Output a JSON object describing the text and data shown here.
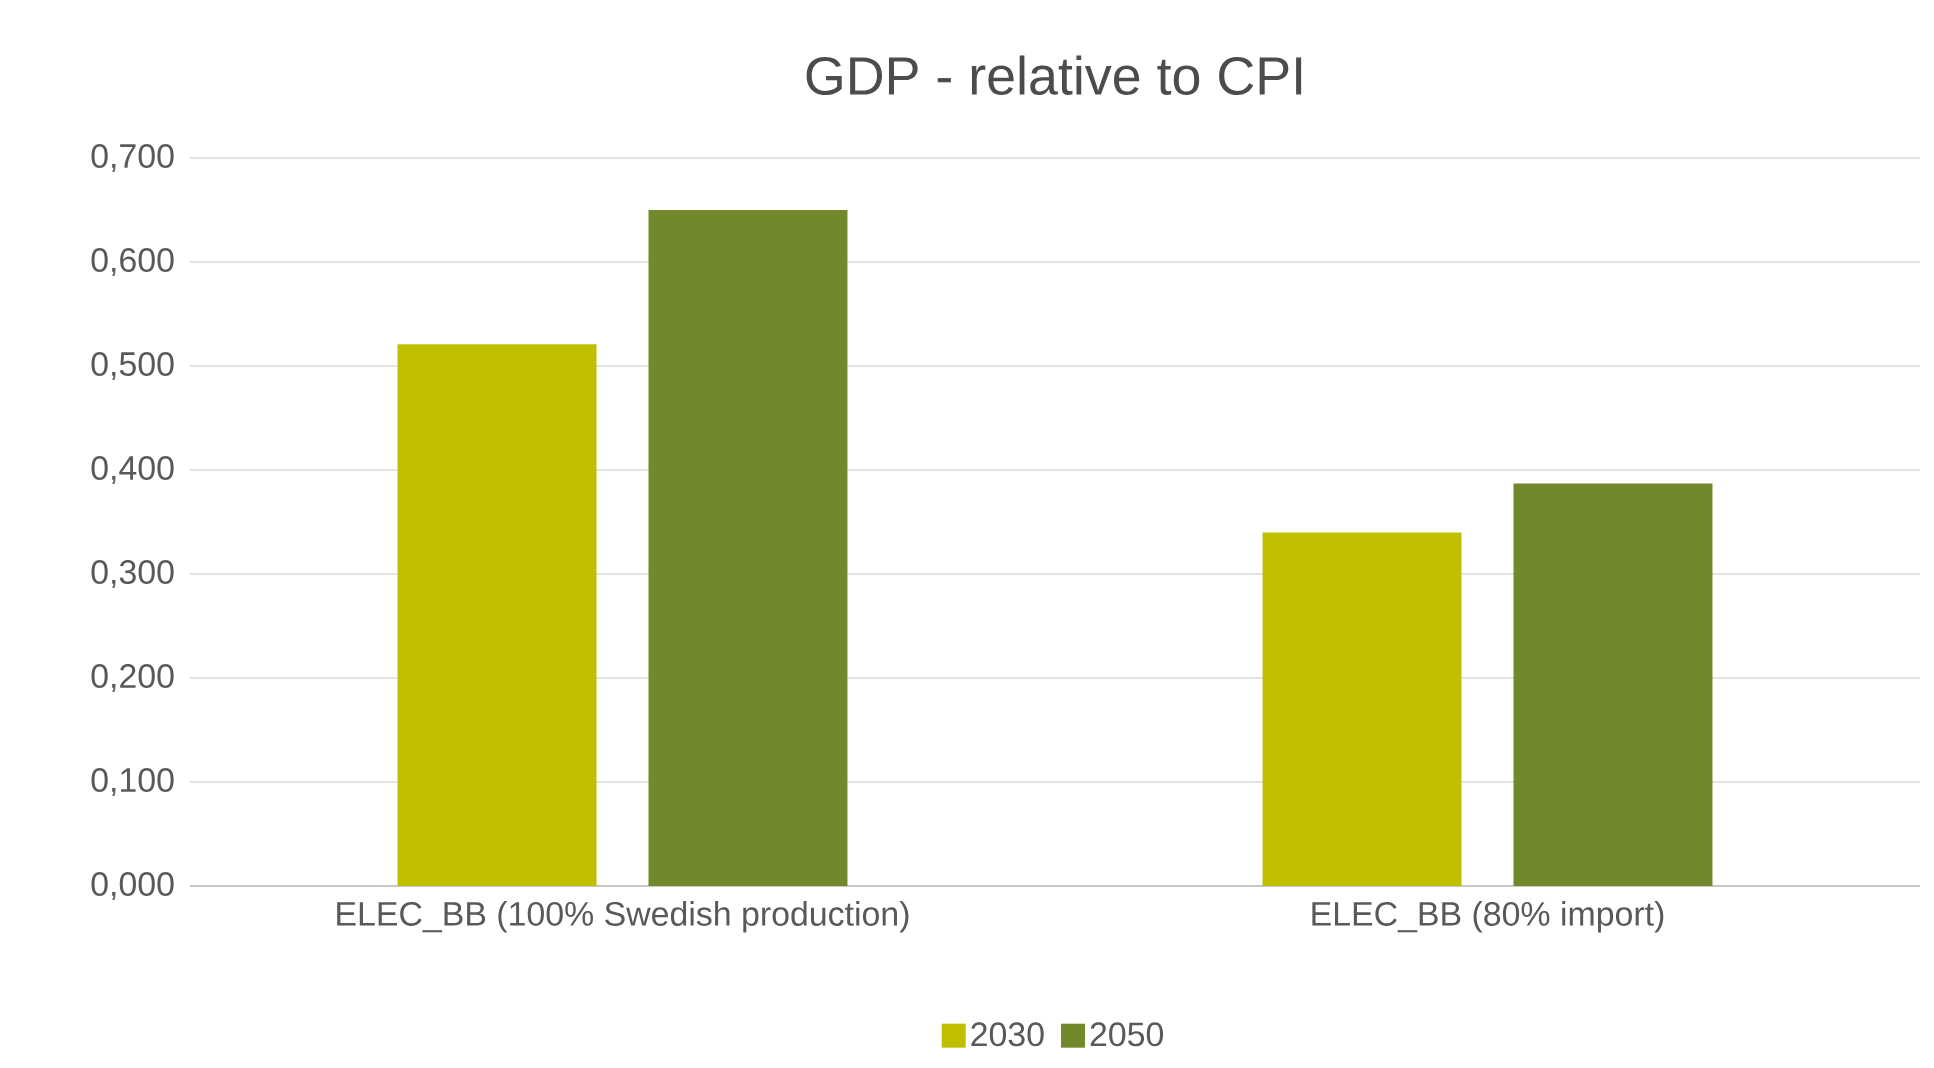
{
  "chart_data": {
    "type": "bar",
    "title": "GDP - relative to CPI",
    "categories": [
      "ELEC_BB (100% Swedish production)",
      "ELEC_BB (80% import)"
    ],
    "series": [
      {
        "name": "2030",
        "color": "#bfbf00",
        "values": [
          0.521,
          0.34
        ]
      },
      {
        "name": "2050",
        "color": "#71892b",
        "values": [
          0.65,
          0.387
        ]
      }
    ],
    "ylim": [
      0,
      0.7
    ],
    "yticks": [
      {
        "value": 0,
        "label": "0,000"
      },
      {
        "value": 0.1,
        "label": "0,100"
      },
      {
        "value": 0.2,
        "label": "0,200"
      },
      {
        "value": 0.3,
        "label": "0,300"
      },
      {
        "value": 0.4,
        "label": "0,400"
      },
      {
        "value": 0.5,
        "label": "0,500"
      },
      {
        "value": 0.6,
        "label": "0,600"
      },
      {
        "value": 0.7,
        "label": "0,700"
      }
    ],
    "grid": "y",
    "legend": "bottom"
  }
}
